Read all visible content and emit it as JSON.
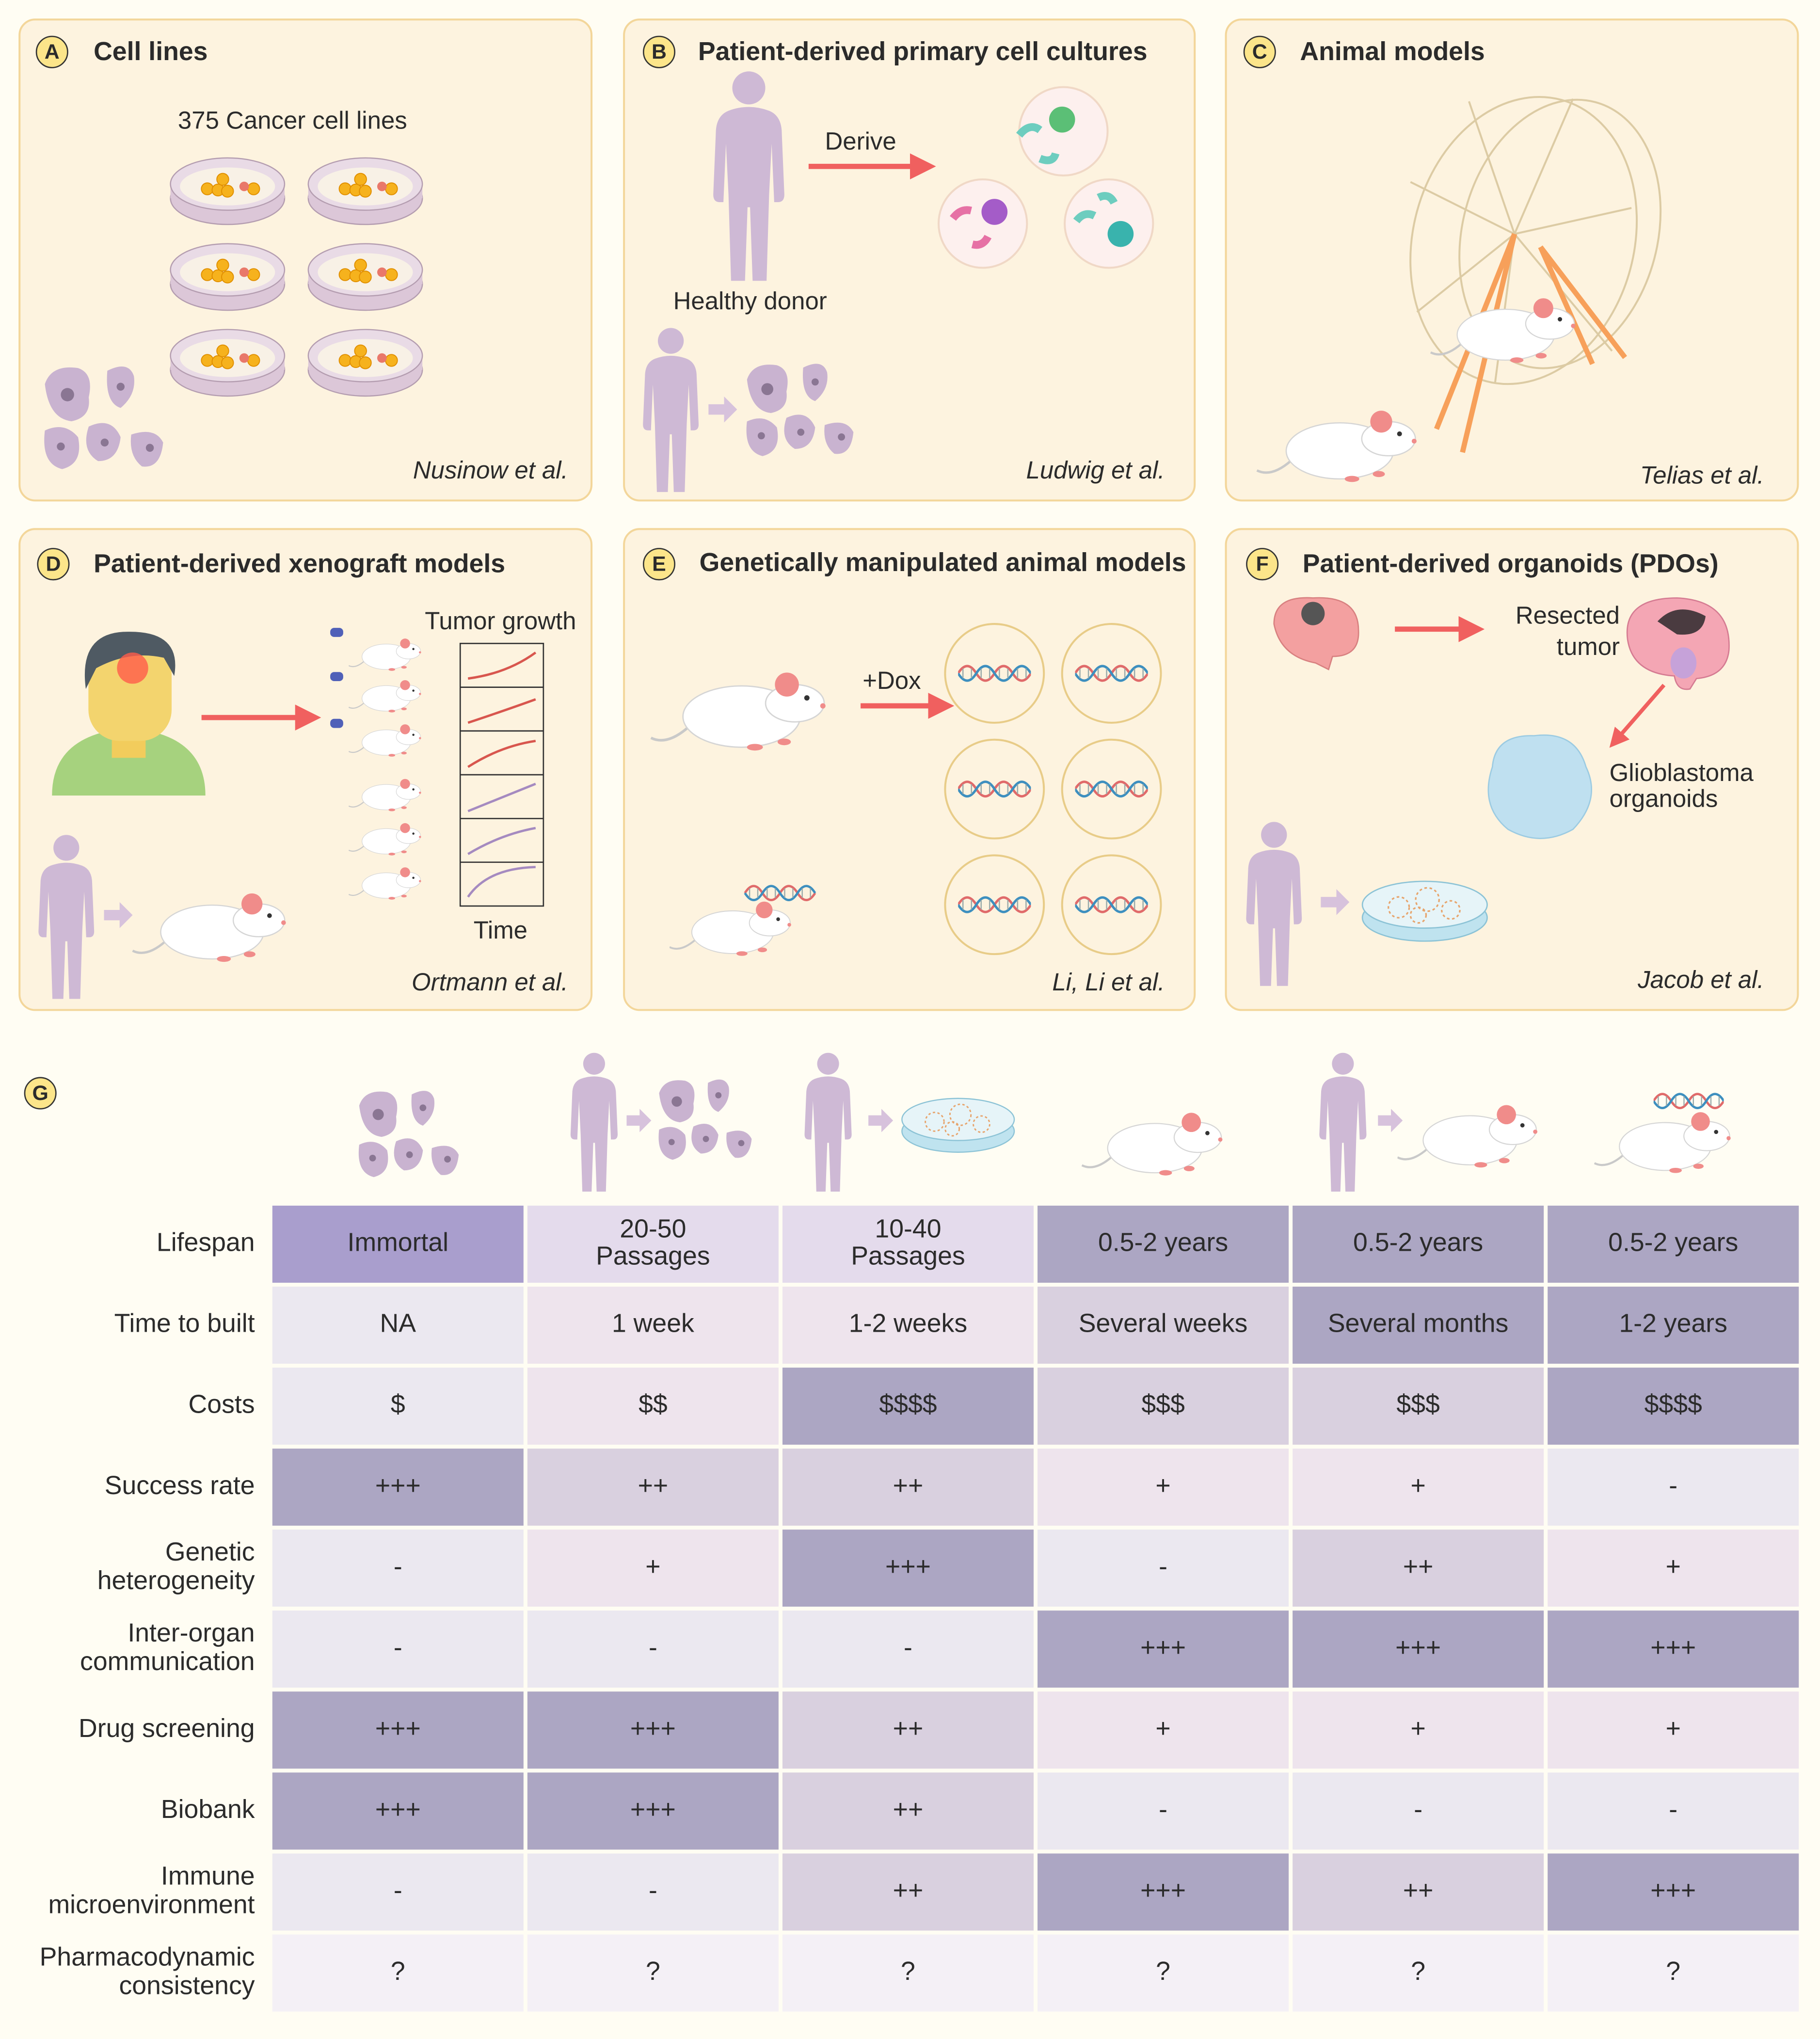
{
  "panels": [
    {
      "letter": "A",
      "title": "Cell lines",
      "labels": [
        "375 Cancer cell lines"
      ],
      "citation": "Nusinow et al."
    },
    {
      "letter": "B",
      "title": "Patient-derived primary cell cultures",
      "labels": [
        "Derive",
        "Healthy donor"
      ],
      "citation": "Ludwig et al."
    },
    {
      "letter": "C",
      "title": "Animal models",
      "citation": "Telias et al."
    },
    {
      "letter": "D",
      "title": "Patient-derived xenograft models",
      "labels": [
        "Tumor growth",
        "Time"
      ],
      "citation": "Ortmann et al."
    },
    {
      "letter": "E",
      "title": "Genetically manipulated animal models",
      "labels": [
        "+Dox"
      ],
      "citation": "Li, Li et al."
    },
    {
      "letter": "F",
      "title": "Patient-derived organoids (PDOs)",
      "labels": [
        [
          "Resected",
          "tumor"
        ],
        [
          "Glioblastoma",
          "organoids"
        ]
      ],
      "citation": "Jacob et al."
    }
  ],
  "table": {
    "letter": "G",
    "rows": [
      {
        "label": "Lifespan",
        "cells": [
          "Immortal",
          [
            "20-50",
            "Passages"
          ],
          [
            "10-40",
            "Passages"
          ],
          "0.5-2 years",
          "0.5-2 years",
          "0.5-2 years"
        ],
        "colors": [
          "#a99ecd",
          "#e4dbec",
          "#e4dbec",
          "#aca6c3",
          "#aca6c3",
          "#aca6c3"
        ]
      },
      {
        "label": "Time to built",
        "cells": [
          "NA",
          "1 week",
          "1-2 weeks",
          "Several weeks",
          "Several months",
          "1-2 years"
        ],
        "colors": [
          "#ebe8f0",
          "#eee4ed",
          "#eee4ed",
          "#d9d0df",
          "#aca6c3",
          "#aca6c3"
        ]
      },
      {
        "label": "Costs",
        "cells": [
          "$",
          "$$",
          "$$$$",
          "$$$",
          "$$$",
          "$$$$"
        ],
        "colors": [
          "#ebe8f0",
          "#eee4ed",
          "#aca6c3",
          "#d9d0df",
          "#d9d0df",
          "#aca6c3"
        ]
      },
      {
        "label": "Success rate",
        "cells": [
          "+++",
          "++",
          "++",
          "+",
          "+",
          "-"
        ],
        "colors": [
          "#aca6c3",
          "#d9d0df",
          "#d9d0df",
          "#eee4ed",
          "#eee4ed",
          "#ebe8f0"
        ]
      },
      {
        "label": [
          "Genetic",
          "heterogeneity"
        ],
        "cells": [
          "-",
          "+",
          "+++",
          "-",
          "++",
          "+"
        ],
        "colors": [
          "#ebe8f0",
          "#eee4ed",
          "#aca6c3",
          "#ebe8f0",
          "#d9d0df",
          "#eee4ed"
        ]
      },
      {
        "label": [
          "Inter-organ",
          "communication"
        ],
        "cells": [
          "-",
          "-",
          "-",
          "+++",
          "+++",
          "+++"
        ],
        "colors": [
          "#ebe8f0",
          "#ebe8f0",
          "#ebe8f0",
          "#aca6c3",
          "#aca6c3",
          "#aca6c3"
        ]
      },
      {
        "label": "Drug screening",
        "cells": [
          "+++",
          "+++",
          "++",
          "+",
          "+",
          "+"
        ],
        "colors": [
          "#aca6c3",
          "#aca6c3",
          "#d9d0df",
          "#eee4ed",
          "#eee4ed",
          "#eee4ed"
        ]
      },
      {
        "label": "Biobank",
        "cells": [
          "+++",
          "+++",
          "++",
          "-",
          "-",
          "-"
        ],
        "colors": [
          "#aca6c3",
          "#aca6c3",
          "#d9d0df",
          "#ebe8f0",
          "#ebe8f0",
          "#ebe8f0"
        ]
      },
      {
        "label": [
          "Immune",
          "microenvironment"
        ],
        "cells": [
          "-",
          "-",
          "++",
          "+++",
          "++",
          "+++"
        ],
        "colors": [
          "#ebe8f0",
          "#ebe8f0",
          "#d9d0df",
          "#aca6c3",
          "#d9d0df",
          "#aca6c3"
        ]
      },
      {
        "label": [
          "Pharmacodynamic",
          "consistency"
        ],
        "cells": [
          "?",
          "?",
          "?",
          "?",
          "?",
          "?"
        ],
        "colors": [
          "#f4f0f6",
          "#f4f0f6",
          "#f4f0f6",
          "#f4f0f6",
          "#f4f0f6",
          "#f4f0f6"
        ]
      }
    ]
  }
}
